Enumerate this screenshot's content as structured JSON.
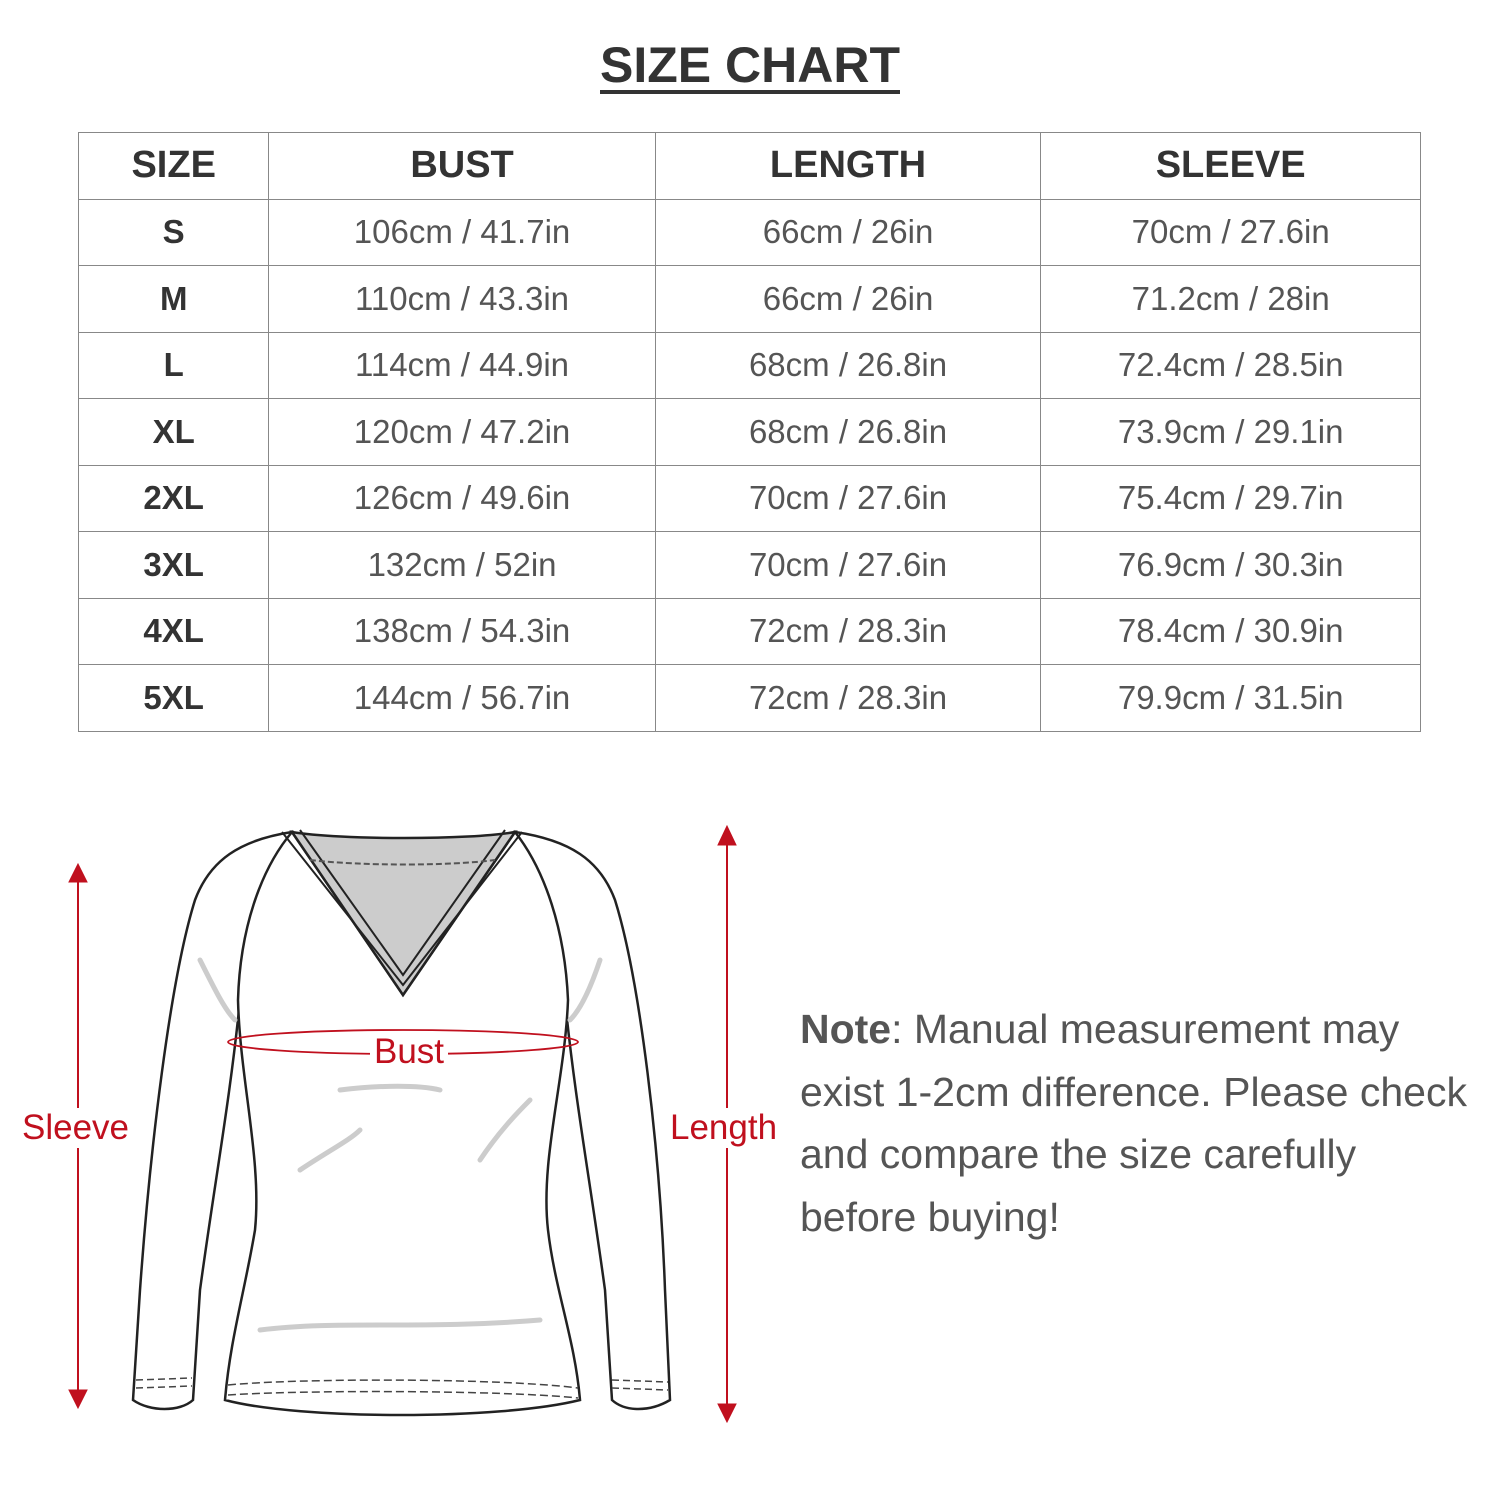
{
  "title": "SIZE CHART",
  "table": {
    "headers": [
      "SIZE",
      "BUST",
      "LENGTH",
      "SLEEVE"
    ],
    "rows": [
      [
        "S",
        "106cm / 41.7in",
        "66cm / 26in",
        "70cm / 27.6in"
      ],
      [
        "M",
        "110cm / 43.3in",
        "66cm / 26in",
        "71.2cm / 28in"
      ],
      [
        "L",
        "114cm / 44.9in",
        "68cm / 26.8in",
        "72.4cm / 28.5in"
      ],
      [
        "XL",
        "120cm / 47.2in",
        "68cm / 26.8in",
        "73.9cm / 29.1in"
      ],
      [
        "2XL",
        "126cm / 49.6in",
        "70cm / 27.6in",
        "75.4cm / 29.7in"
      ],
      [
        "3XL",
        "132cm / 52in",
        "70cm / 27.6in",
        "76.9cm / 30.3in"
      ],
      [
        "4XL",
        "138cm / 54.3in",
        "72cm / 28.3in",
        "78.4cm / 30.9in"
      ],
      [
        "5XL",
        "144cm / 56.7in",
        "72cm / 28.3in",
        "79.9cm / 31.5in"
      ]
    ]
  },
  "diagram": {
    "labels": {
      "sleeve": "Sleeve",
      "bust": "Bust",
      "length": "Length"
    },
    "accent_color": "#c0101e"
  },
  "note": {
    "label": "Note",
    "text": ": Manual measurement may exist 1-2cm difference. Please check and compare the size carefully before buying!"
  }
}
